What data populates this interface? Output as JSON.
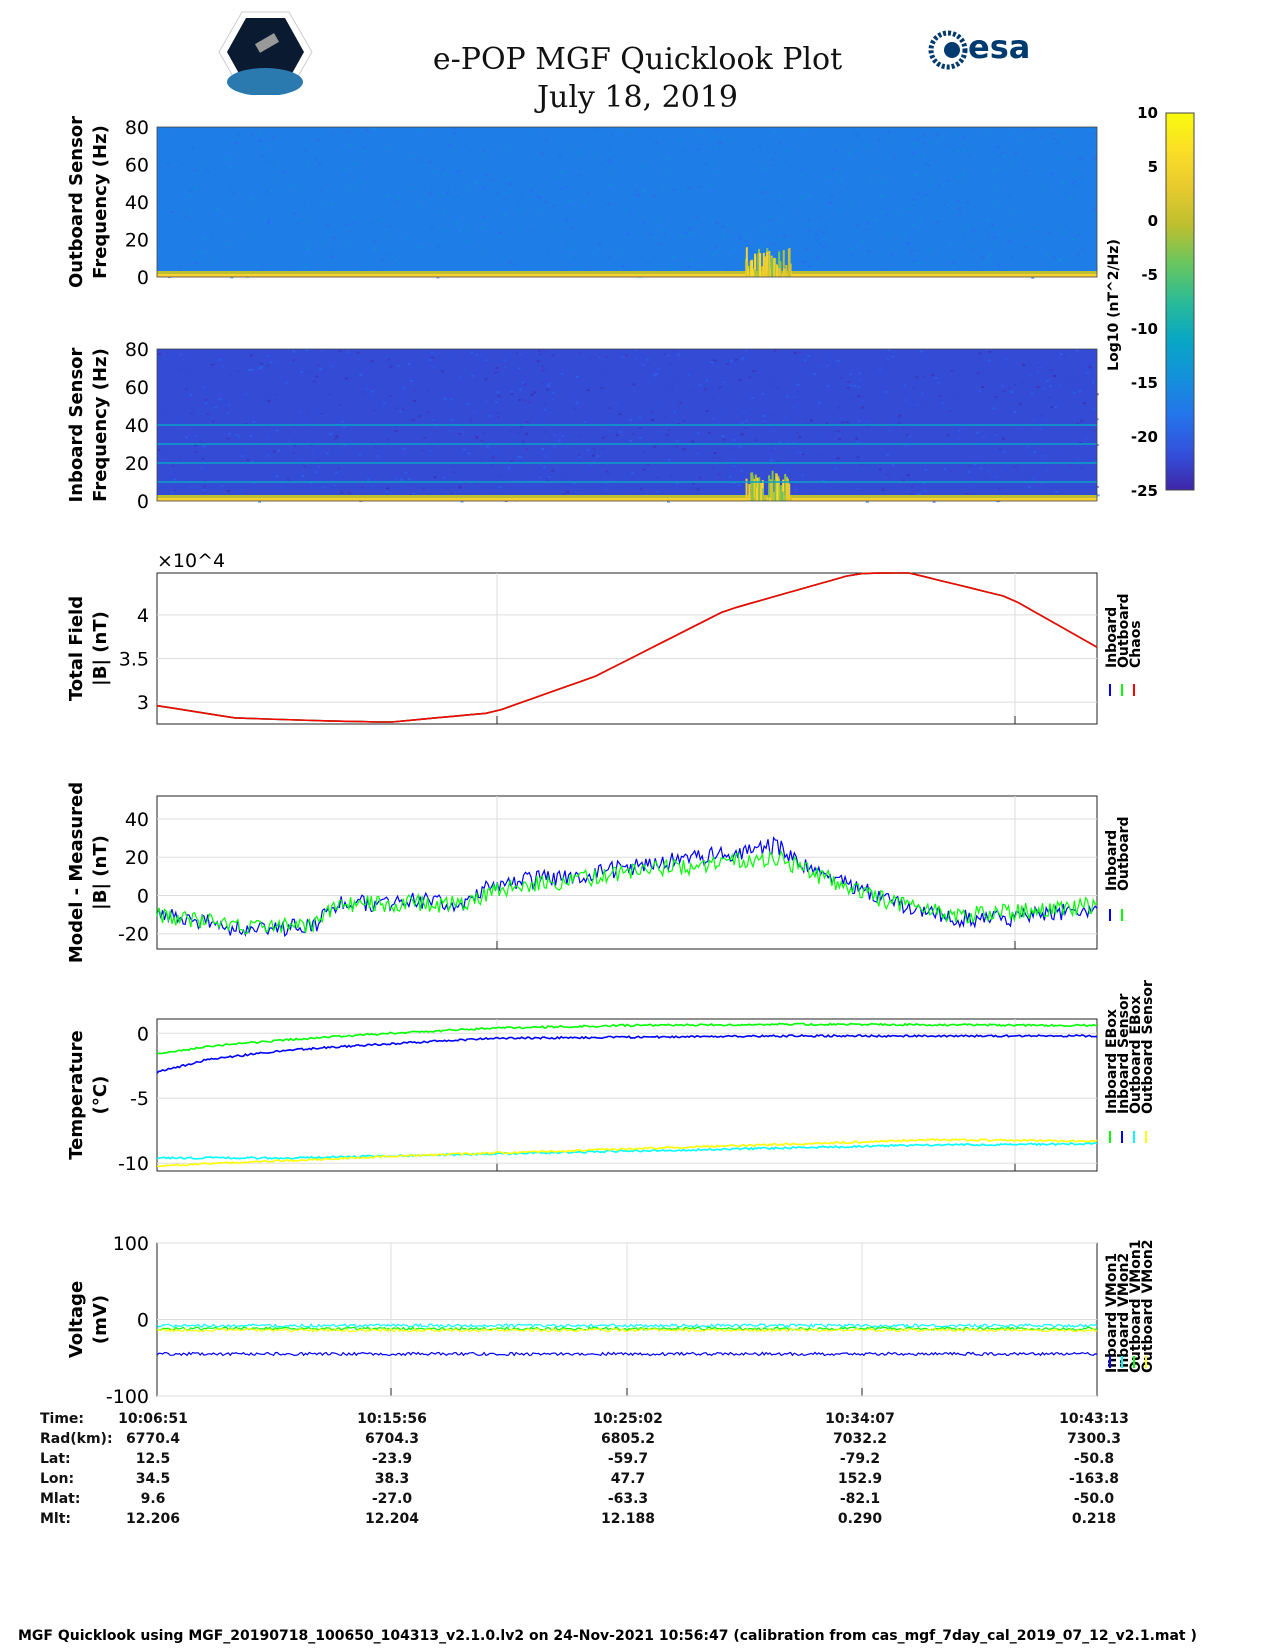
{
  "header": {
    "title": "e-POP MGF Quicklook Plot",
    "date": "July 18, 2019",
    "logo_left": "CASSIOPE",
    "logo_right": "esa"
  },
  "colorbar": {
    "label": "Log10 (nT^2/Hz)",
    "ticks": [
      "10",
      "5",
      "0",
      "-5",
      "-10",
      "-15",
      "-20",
      "-25"
    ],
    "range": [
      -25,
      10
    ]
  },
  "chart_data": [
    {
      "type": "heatmap",
      "name": "outboard-spectrogram",
      "ylabel": "Outboard Sensor\nFrequency (Hz)",
      "ylabel_lines": [
        "Outboard Sensor",
        "Frequency (Hz)"
      ],
      "yticks": [
        "80",
        "60",
        "40",
        "20",
        "0"
      ],
      "ylim": [
        0,
        80
      ],
      "background_level": -17
    },
    {
      "type": "heatmap",
      "name": "inboard-spectrogram",
      "ylabel_lines": [
        "Inboard Sensor",
        "Frequency (Hz)"
      ],
      "yticks": [
        "80",
        "60",
        "40",
        "20",
        "0"
      ],
      "ylim": [
        0,
        80
      ],
      "background_level": -22,
      "lines_hz": [
        10,
        20,
        30,
        40
      ]
    },
    {
      "type": "line",
      "name": "total-field",
      "ylabel_lines": [
        "Total Field",
        "|B| (nT)"
      ],
      "exponent_label": "×10^4",
      "yticks": [
        "4",
        "3.5",
        "3"
      ],
      "ytick_values": [
        40000,
        35000,
        30000
      ],
      "ylim": [
        27500,
        44800
      ],
      "xlim": [
        0,
        36.4
      ],
      "series": [
        {
          "name": "Inboard",
          "color": "#0000ff",
          "x": [
            0,
            3,
            6,
            9,
            13,
            17,
            22,
            27,
            29,
            33,
            36.4
          ],
          "y": [
            29600,
            28200,
            27900,
            27700,
            28800,
            33000,
            40500,
            44700,
            44900,
            42000,
            36300
          ]
        },
        {
          "name": "Outboard",
          "color": "#00ff00",
          "x": [
            0,
            3,
            6,
            9,
            13,
            17,
            22,
            27,
            29,
            33,
            36.4
          ],
          "y": [
            29600,
            28200,
            27900,
            27700,
            28800,
            33000,
            40500,
            44700,
            44900,
            42000,
            36300
          ]
        },
        {
          "name": "Chaos",
          "color": "#ff0000",
          "x": [
            0,
            3,
            6,
            9,
            13,
            17,
            22,
            27,
            29,
            33,
            36.4
          ],
          "y": [
            29600,
            28200,
            27900,
            27700,
            28800,
            33000,
            40500,
            44700,
            44900,
            42000,
            36300
          ]
        }
      ]
    },
    {
      "type": "line",
      "name": "model-minus-measured",
      "ylabel_lines": [
        "Model - Measured",
        "|B| (nT)"
      ],
      "yticks": [
        "40",
        "20",
        "0",
        "-20"
      ],
      "ytick_values": [
        40,
        20,
        0,
        -20
      ],
      "ylim": [
        -28,
        52
      ],
      "xlim": [
        0,
        36.4
      ],
      "series": [
        {
          "name": "Inboard",
          "color": "#0000ff",
          "x": [
            0,
            3,
            6,
            7,
            10,
            12,
            13,
            16,
            19,
            22,
            24,
            25,
            27,
            29,
            31,
            33,
            36.4
          ],
          "y": [
            -8,
            -17,
            -17,
            -5,
            -3,
            -4,
            6,
            10,
            16,
            22,
            26,
            17,
            5,
            -6,
            -12,
            -12,
            -6
          ]
        },
        {
          "name": "Outboard",
          "color": "#00ff00",
          "x": [
            0,
            3,
            6,
            7,
            10,
            12,
            13,
            16,
            19,
            22,
            24,
            25,
            27,
            29,
            31,
            33,
            36.4
          ],
          "y": [
            -10,
            -16,
            -15,
            -5,
            -4,
            -5,
            3,
            8,
            13,
            17,
            20,
            14,
            3,
            -6,
            -10,
            -9,
            -5
          ]
        }
      ]
    },
    {
      "type": "line",
      "name": "temperature",
      "ylabel_lines": [
        "Temperature",
        "(°C)"
      ],
      "yticks": [
        "0",
        "-5",
        "-10"
      ],
      "ytick_values": [
        0,
        -5,
        -10
      ],
      "ylim": [
        -10.6,
        1.1
      ],
      "xlim": [
        0,
        36.4
      ],
      "series": [
        {
          "name": "Inboard EBox",
          "color": "#00ff00",
          "x": [
            0,
            2,
            5,
            9,
            13,
            18,
            25,
            36.4
          ],
          "y": [
            -1.6,
            -1.0,
            -0.5,
            0,
            0.4,
            0.6,
            0.7,
            0.6
          ]
        },
        {
          "name": "Inboard Sensor",
          "color": "#0000ff",
          "x": [
            0,
            2,
            5,
            9,
            13,
            18,
            25,
            36.4
          ],
          "y": [
            -3,
            -2.0,
            -1.3,
            -0.8,
            -0.4,
            -0.3,
            -0.2,
            -0.2
          ]
        },
        {
          "name": "Outboard EBox",
          "color": "#00ffff",
          "x": [
            0,
            5,
            10,
            15,
            20,
            25,
            30,
            36.4
          ],
          "y": [
            -9.6,
            -9.6,
            -9.4,
            -9.2,
            -9.0,
            -8.8,
            -8.6,
            -8.5
          ]
        },
        {
          "name": "Outboard Sensor",
          "color": "#ffff00",
          "x": [
            0,
            5,
            10,
            15,
            20,
            25,
            30,
            36.4
          ],
          "y": [
            -10.2,
            -9.8,
            -9.4,
            -9.1,
            -8.8,
            -8.5,
            -8.2,
            -8.3
          ]
        }
      ]
    },
    {
      "type": "line",
      "name": "voltage",
      "ylabel_lines": [
        "Voltage",
        "(mV)"
      ],
      "yticks": [
        "100",
        "0",
        "-100"
      ],
      "ytick_values": [
        100,
        0,
        -100
      ],
      "ylim": [
        -100,
        100
      ],
      "xlim": [
        0,
        36.4
      ],
      "series": [
        {
          "name": "Inboard VMon1",
          "color": "#0000ff",
          "x": [
            0,
            36.4
          ],
          "y": [
            -45,
            -45
          ]
        },
        {
          "name": "Inboard VMon2",
          "color": "#00ffff",
          "x": [
            0,
            36.4
          ],
          "y": [
            -8,
            -8
          ]
        },
        {
          "name": "Outboard VMon1",
          "color": "#00ff00",
          "x": [
            0,
            36.4
          ],
          "y": [
            -12,
            -12
          ]
        },
        {
          "name": "Outboard VMon2",
          "color": "#ffff00",
          "x": [
            0,
            36.4
          ],
          "y": [
            -14,
            -14
          ]
        }
      ]
    }
  ],
  "ephemeris": {
    "labels": [
      "Time:",
      "Rad(km):",
      "Lat:",
      "Lon:",
      "Mlat:",
      "Mlt:"
    ],
    "columns": [
      [
        "10:06:51",
        "6770.4",
        "12.5",
        "34.5",
        "9.6",
        "12.206"
      ],
      [
        "10:15:56",
        "6704.3",
        "-23.9",
        "38.3",
        "-27.0",
        "12.204"
      ],
      [
        "10:25:02",
        "6805.2",
        "-59.7",
        "47.7",
        "-63.3",
        "12.188"
      ],
      [
        "10:34:07",
        "7032.2",
        "-79.2",
        "152.9",
        "-82.1",
        "0.290"
      ],
      [
        "10:43:13",
        "7300.3",
        "-50.8",
        "-163.8",
        "-50.0",
        "0.218"
      ]
    ]
  },
  "footer": "MGF Quicklook using MGF_20190718_100650_104313_v2.1.0.lv2 on 24-Nov-2021 10:56:47 (calibration from cas_mgf_7day_cal_2019_07_12_v2.1.mat )"
}
